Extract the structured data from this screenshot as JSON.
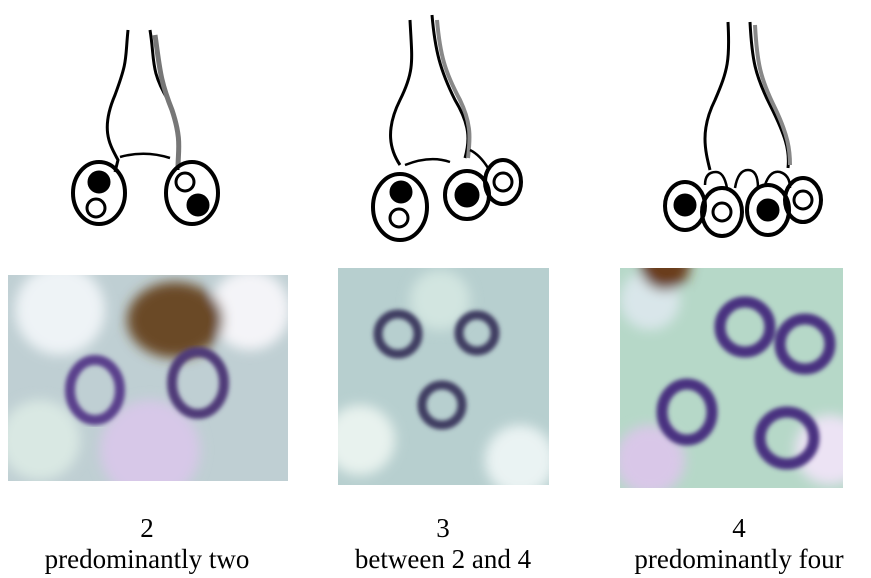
{
  "panels": [
    {
      "number": "2",
      "caption": "predominantly two"
    },
    {
      "number": "3",
      "caption": "between 2 and 4"
    },
    {
      "number": "4",
      "caption": "predominantly four"
    }
  ]
}
